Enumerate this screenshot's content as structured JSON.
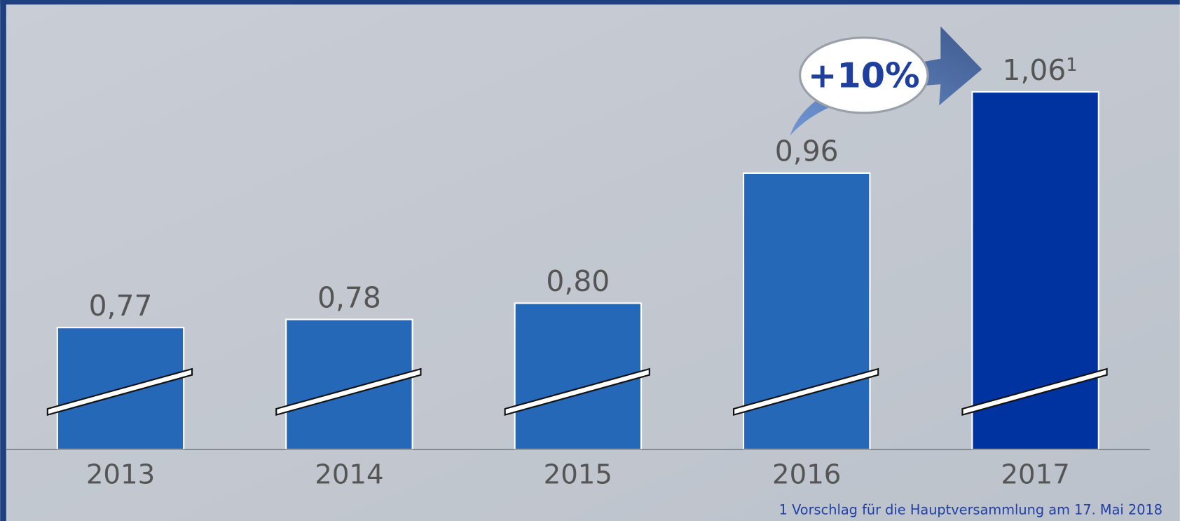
{
  "chart_data": {
    "type": "bar",
    "categories": [
      "2013",
      "2014",
      "2015",
      "2016",
      "2017"
    ],
    "values": [
      0.77,
      0.78,
      0.8,
      0.96,
      1.06
    ],
    "value_labels": [
      "0,77",
      "0,78",
      "0,80",
      "0,96",
      "1,06"
    ],
    "colors": [
      "#2668b8",
      "#2668b8",
      "#2668b8",
      "#2668b8",
      "#0033a0"
    ],
    "footnote_marker": "1",
    "annotation": "+10%",
    "footnote": "1 Vorschlag für die Hauptversammlung am 17.  Mai 2018",
    "ylim": [
      0.62,
      1.173
    ],
    "broken_axis": true
  }
}
